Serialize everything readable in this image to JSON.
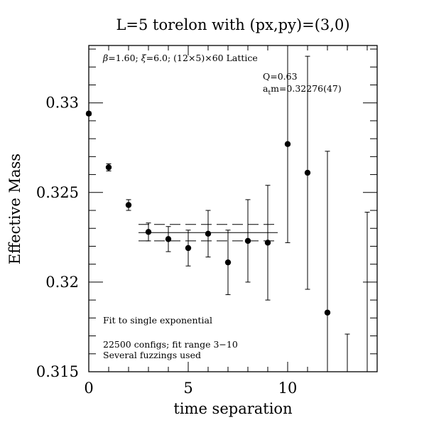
{
  "chart_data": {
    "type": "scatter",
    "title": "L=5 torelon with (px,py)=(3,0)",
    "xlabel": "time separation",
    "ylabel": "Effective Mass",
    "xlim": [
      0,
      14.5
    ],
    "ylim": [
      0.315,
      0.3332
    ],
    "x_ticks": [
      0,
      5,
      10
    ],
    "x_tick_labels": [
      "0",
      "5",
      "10"
    ],
    "y_ticks": [
      0.315,
      0.32,
      0.325,
      0.33
    ],
    "y_tick_labels": [
      "0.315",
      "0.32",
      "0.325",
      "0.33"
    ],
    "x_minor_step": 1,
    "y_minor_step": 0.001,
    "grid": false,
    "points": [
      {
        "x": 0,
        "y": 0.3294,
        "err": 0.0001
      },
      {
        "x": 1,
        "y": 0.3264,
        "err": 0.0002
      },
      {
        "x": 2,
        "y": 0.3243,
        "err": 0.0003
      },
      {
        "x": 3,
        "y": 0.3228,
        "err": 0.0005
      },
      {
        "x": 4,
        "y": 0.3224,
        "err": 0.0007
      },
      {
        "x": 5,
        "y": 0.3219,
        "err": 0.001
      },
      {
        "x": 6,
        "y": 0.3227,
        "err": 0.0013
      },
      {
        "x": 7,
        "y": 0.3211,
        "err": 0.0018
      },
      {
        "x": 8,
        "y": 0.3223,
        "err": 0.0023
      },
      {
        "x": 9,
        "y": 0.3222,
        "err": 0.0032
      },
      {
        "x": 10,
        "y": 0.3277,
        "err": 0.0055
      },
      {
        "x": 11,
        "y": 0.3261,
        "err": 0.0065
      },
      {
        "x": 12,
        "y": 0.3183,
        "err": 0.009
      },
      {
        "x": 13,
        "y": null,
        "err": null,
        "bar_range": [
          0.315,
          0.3171
        ]
      },
      {
        "x": 14,
        "y": null,
        "err": null,
        "bar_range": [
          0.315,
          0.3239
        ]
      }
    ],
    "fit": {
      "type": "horizontal",
      "x_range": [
        2.5,
        9.5
      ],
      "value": 0.32276,
      "band": [
        0.3223,
        0.32322
      ]
    },
    "annotations": [
      {
        "id": "lattice",
        "parts": [
          {
            "text": "β",
            "font": "symbol"
          },
          {
            "text": "=1.60; ",
            "font": "normal"
          },
          {
            "text": "ξ",
            "font": "symbol"
          },
          {
            "text": "=6.0; (12×5)×60 Lattice",
            "font": "normal"
          }
        ]
      },
      {
        "id": "q",
        "text": "Q=0.63"
      },
      {
        "id": "atm",
        "prefix": "a",
        "subscript": "t",
        "suffix": "m=0.32276(47)"
      },
      {
        "id": "fit_desc",
        "text": "Fit to single exponential"
      },
      {
        "id": "configs",
        "text": "22500 configs; fit range 3−10"
      },
      {
        "id": "fuzz",
        "text": "Several fuzzings used"
      }
    ]
  }
}
